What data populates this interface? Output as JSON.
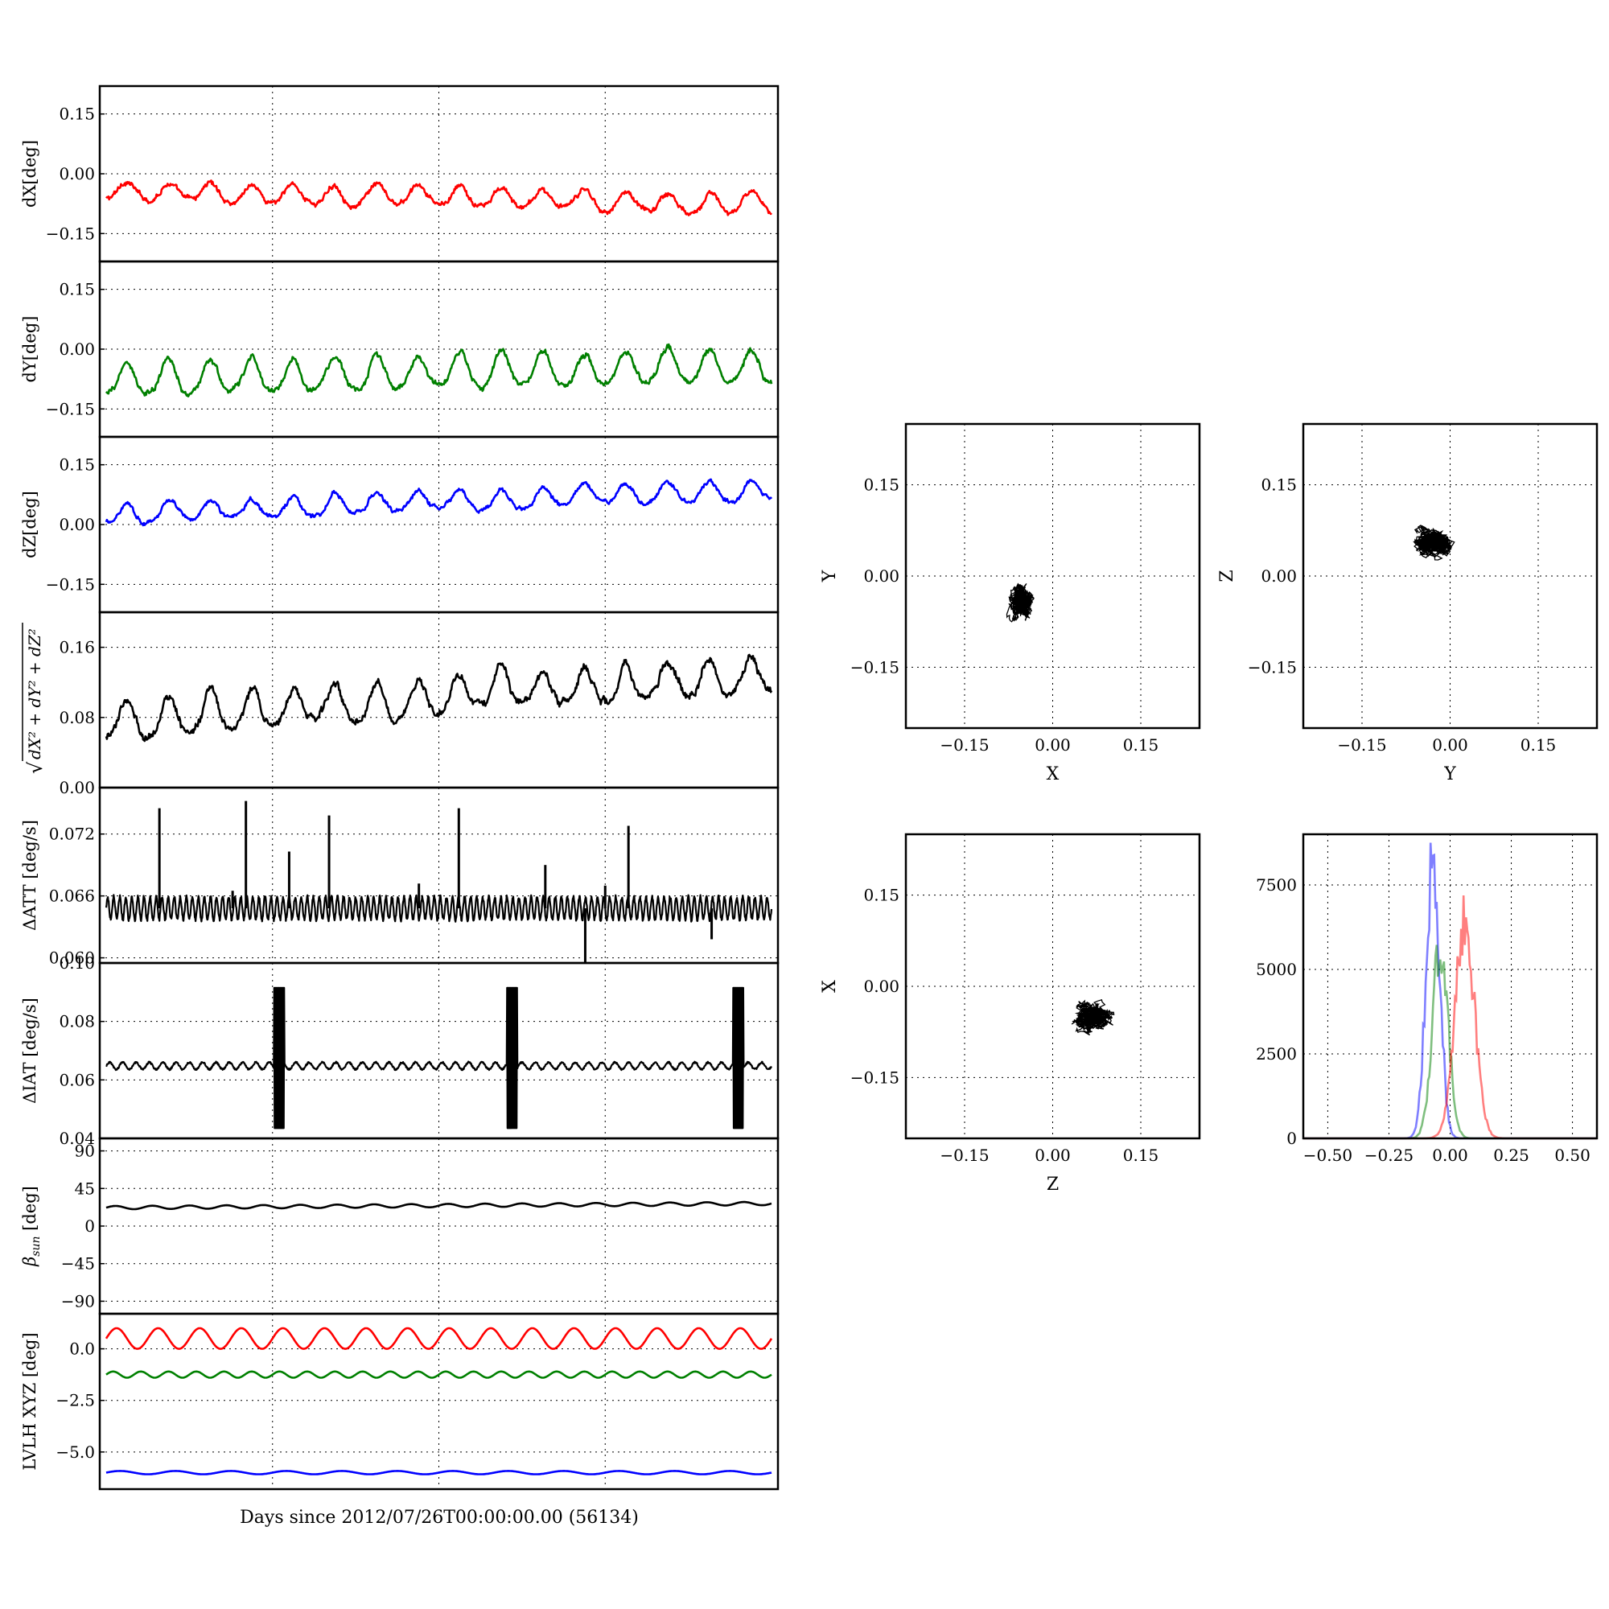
{
  "figure": {
    "xlabel": "Days since 2012/07/26T00:00:00.00 (56134)"
  },
  "chart_data": [
    {
      "type": "line",
      "ylabel": "dX[deg]",
      "ylim": [
        -0.22,
        0.22
      ],
      "yticks": [
        -0.15,
        0.0,
        0.15
      ],
      "yticklabels": [
        "−0.15",
        "0.00",
        "0.15"
      ],
      "grid": true,
      "series": [
        {
          "color": "#ff0000",
          "pattern": "bumps",
          "base": -0.048,
          "drift": -0.035,
          "amplitude": 0.045,
          "noise": 0.007,
          "cycles": 16
        }
      ]
    },
    {
      "type": "line",
      "ylabel": "dY[deg]",
      "ylim": [
        -0.22,
        0.22
      ],
      "yticks": [
        -0.15,
        0.0,
        0.15
      ],
      "yticklabels": [
        "−0.15",
        "0.00",
        "0.15"
      ],
      "grid": true,
      "series": [
        {
          "color": "#008000",
          "pattern": "bumps",
          "base": -0.09,
          "drift": 0.04,
          "amplitude": 0.08,
          "noise": 0.008,
          "cycles": 16
        }
      ]
    },
    {
      "type": "line",
      "ylabel": "dZ[deg]",
      "ylim": [
        -0.22,
        0.22
      ],
      "yticks": [
        -0.15,
        0.0,
        0.15
      ],
      "yticklabels": [
        "−0.15",
        "0.00",
        "0.15"
      ],
      "grid": true,
      "series": [
        {
          "color": "#0000ff",
          "pattern": "bumps",
          "base": 0.02,
          "drift": 0.06,
          "amplitude": 0.05,
          "noise": 0.006,
          "cycles": 16
        }
      ]
    },
    {
      "type": "line",
      "ylabel_math": true,
      "ylim": [
        0.0,
        0.2
      ],
      "yticks": [
        0.0,
        0.08,
        0.16
      ],
      "yticklabels": [
        "0.00",
        "0.08",
        "0.16"
      ],
      "grid": true,
      "series": [
        {
          "color": "#000000",
          "pattern": "bumps",
          "base": 0.07,
          "drift": 0.055,
          "amplitude": 0.04,
          "noise": 0.005,
          "cycles": 16
        }
      ]
    },
    {
      "type": "line",
      "ylabel": "ΔATT [deg/s]",
      "ylim": [
        0.0595,
        0.0765
      ],
      "yticks": [
        0.06,
        0.066,
        0.072
      ],
      "yticklabels": [
        "0.060",
        "0.066",
        "0.072"
      ],
      "grid": true,
      "series": [
        {
          "color": "#000000",
          "pattern": "oscillation",
          "base": 0.0648,
          "amplitude": 0.0011,
          "cycles": 110,
          "noise": 0.0002,
          "spikes": [
            [
              0.08,
              0.0745
            ],
            [
              0.21,
              0.0752
            ],
            [
              0.275,
              0.0703
            ],
            [
              0.335,
              0.0738
            ],
            [
              0.53,
              0.0745
            ],
            [
              0.66,
              0.069
            ],
            [
              0.72,
              0.0595
            ],
            [
              0.785,
              0.0728
            ],
            [
              0.19,
              0.0665
            ],
            [
              0.47,
              0.0672
            ],
            [
              0.75,
              0.067
            ],
            [
              0.91,
              0.0618
            ]
          ]
        }
      ]
    },
    {
      "type": "line",
      "ylabel": "ΔIAT [deg/s]",
      "ylim": [
        0.04,
        0.1
      ],
      "yticks": [
        0.04,
        0.06,
        0.08,
        0.1
      ],
      "yticklabels": [
        "0.04",
        "0.06",
        "0.08",
        "0.10"
      ],
      "grid": true,
      "series": [
        {
          "color": "#000000",
          "pattern": "oscillation",
          "base": 0.0648,
          "amplitude": 0.0012,
          "cycles": 50,
          "noise": 0.0003,
          "bursts": [
            [
              0.26,
              0.0435,
              0.0915
            ],
            [
              0.61,
              0.0435,
              0.0915
            ],
            [
              0.95,
              0.0435,
              0.0915
            ]
          ]
        }
      ]
    },
    {
      "type": "line",
      "ylabel_beta": true,
      "ylim": [
        -105,
        105
      ],
      "yticks": [
        -90,
        -45,
        0,
        45,
        90
      ],
      "yticklabels": [
        "−90",
        "−45",
        "0",
        "45",
        "90"
      ],
      "grid": true,
      "series": [
        {
          "color": "#000000",
          "pattern": "sine",
          "base": 22,
          "drift": 5,
          "amplitude": 2,
          "cycles": 18
        }
      ]
    },
    {
      "type": "line",
      "ylabel": "LVLH XYZ [deg]",
      "ylim": [
        -6.8,
        1.7
      ],
      "yticks": [
        -5.0,
        -2.5,
        0.0
      ],
      "yticklabels": [
        "−5.0",
        "−2.5",
        "0.0"
      ],
      "grid": true,
      "series": [
        {
          "color": "#ff0000",
          "pattern": "sine",
          "base": 0.5,
          "drift": 0,
          "amplitude": 0.5,
          "cycles": 16
        },
        {
          "color": "#008000",
          "pattern": "sine",
          "base": -1.25,
          "drift": 0,
          "amplitude": 0.15,
          "cycles": 24
        },
        {
          "color": "#0000ff",
          "pattern": "sine",
          "base": -6.0,
          "drift": 0,
          "amplitude": 0.08,
          "cycles": 12
        }
      ]
    },
    {
      "type": "scatter",
      "xlabel": "X",
      "ylabel": "Y",
      "xlim": [
        -0.25,
        0.25
      ],
      "ylim": [
        -0.25,
        0.25
      ],
      "ticks": [
        -0.15,
        0.0,
        0.15
      ],
      "ticklabels": [
        "−0.15",
        "0.00",
        "0.15"
      ],
      "grid": true,
      "cloud": {
        "cx": -0.055,
        "cy": -0.04,
        "rx": 0.03,
        "ry": 0.045
      }
    },
    {
      "type": "scatter",
      "xlabel": "Y",
      "ylabel": "Z",
      "xlim": [
        -0.25,
        0.25
      ],
      "ylim": [
        -0.25,
        0.25
      ],
      "ticks": [
        -0.15,
        0.0,
        0.15
      ],
      "ticklabels": [
        "−0.15",
        "0.00",
        "0.15"
      ],
      "grid": true,
      "cloud": {
        "cx": -0.03,
        "cy": 0.055,
        "rx": 0.05,
        "ry": 0.035
      }
    },
    {
      "type": "scatter",
      "xlabel": "Z",
      "ylabel": "X",
      "xlim": [
        -0.25,
        0.25
      ],
      "ylim": [
        -0.25,
        0.25
      ],
      "ticks": [
        -0.15,
        0.0,
        0.15
      ],
      "ticklabels": [
        "−0.15",
        "0.00",
        "0.15"
      ],
      "grid": true,
      "cloud": {
        "cx": 0.07,
        "cy": -0.05,
        "rx": 0.045,
        "ry": 0.03
      }
    },
    {
      "type": "histogram",
      "xlim": [
        -0.6,
        0.6
      ],
      "ylim": [
        0,
        9000
      ],
      "xticks": [
        -0.5,
        -0.25,
        0.0,
        0.25,
        0.5
      ],
      "xticklabels": [
        "−0.50",
        "−0.25",
        "0.00",
        "0.25",
        "0.50"
      ],
      "yticks": [
        0,
        2500,
        5000,
        7500
      ],
      "yticklabels": [
        "0",
        "2500",
        "5000",
        "7500"
      ],
      "grid": true,
      "series": [
        {
          "color": "#0000ff",
          "center": -0.07,
          "width": 0.028,
          "peak": 8800
        },
        {
          "color": "#008000",
          "center": -0.04,
          "width": 0.032,
          "peak": 6000
        },
        {
          "color": "#ff0000",
          "center": 0.06,
          "width": 0.04,
          "peak": 6600
        }
      ]
    }
  ]
}
